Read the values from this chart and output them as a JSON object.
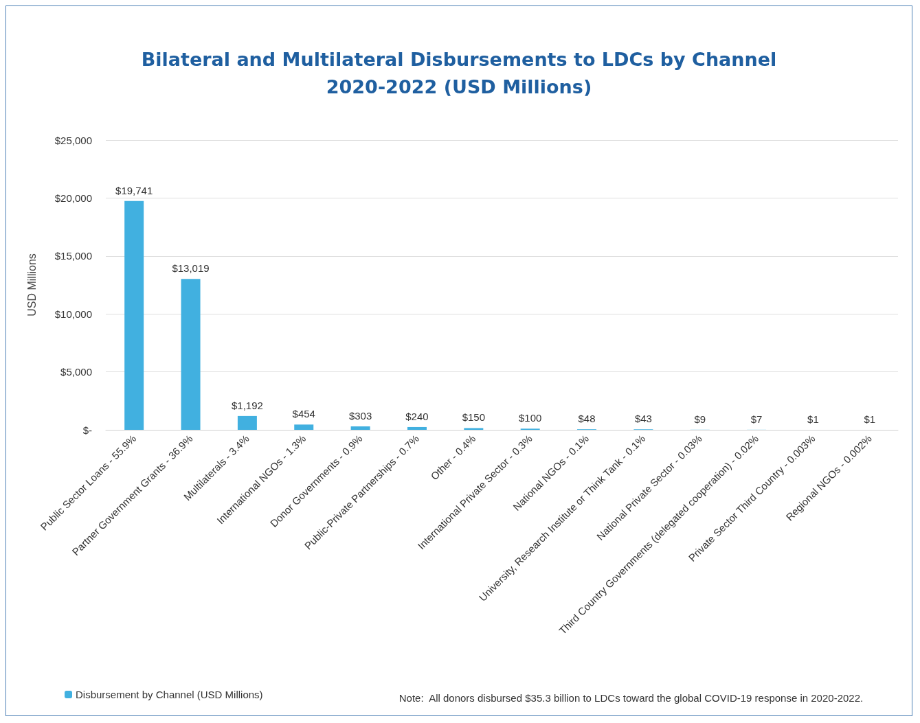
{
  "chart_data": {
    "type": "bar",
    "title": "Bilateral and Multilateral Disbursements to LDCs by Channel\n2020-2022 (USD Millions)",
    "ylabel": "USD Millions",
    "categories": [
      "Public Sector Loans - 55.9%",
      "Partner Government Grants - 36.9%",
      "Multilaterals - 3.4%",
      "International NGOs - 1.3%",
      "Donor Governments - 0.9%",
      "Public-Private Partnerships - 0.7%",
      "Other - 0.4%",
      "International Private Sector - 0.3%",
      "National NGOs - 0.1%",
      "University, Research Institute or Think Tank - 0.1%",
      "National Private Sector - 0.03%",
      "Third Country Governments (delegated cooperation) - 0.02%",
      "Private Sector Third Country - 0.003%",
      "Regional NGOs - 0.002%"
    ],
    "series": [
      {
        "name": "Disbursement by Channel (USD Millions)",
        "color": "#41b0e0",
        "values": [
          19741,
          13019,
          1192,
          454,
          303,
          240,
          150,
          100,
          48,
          43,
          9,
          7,
          1,
          1
        ],
        "value_labels": [
          "$19,741",
          "$13,019",
          "$1,192",
          "$454",
          "$303",
          "$240",
          "$150",
          "$100",
          "$48",
          "$43",
          "$9",
          "$7",
          "$1",
          "$1"
        ]
      }
    ],
    "ylim": [
      0,
      25000
    ],
    "yticks": [
      {
        "value": 0,
        "label": "$-"
      },
      {
        "value": 5000,
        "label": "$5,000"
      },
      {
        "value": 10000,
        "label": "$10,000"
      },
      {
        "value": 15000,
        "label": "$15,000"
      },
      {
        "value": 20000,
        "label": "$20,000"
      },
      {
        "value": 25000,
        "label": "$25,000"
      }
    ],
    "grid": "y",
    "legend": "bottom left",
    "annotations": [
      "Note:  All donors disbursed $35.3 billion to LDCs toward the global COVID-19 response in 2020-2022."
    ]
  }
}
